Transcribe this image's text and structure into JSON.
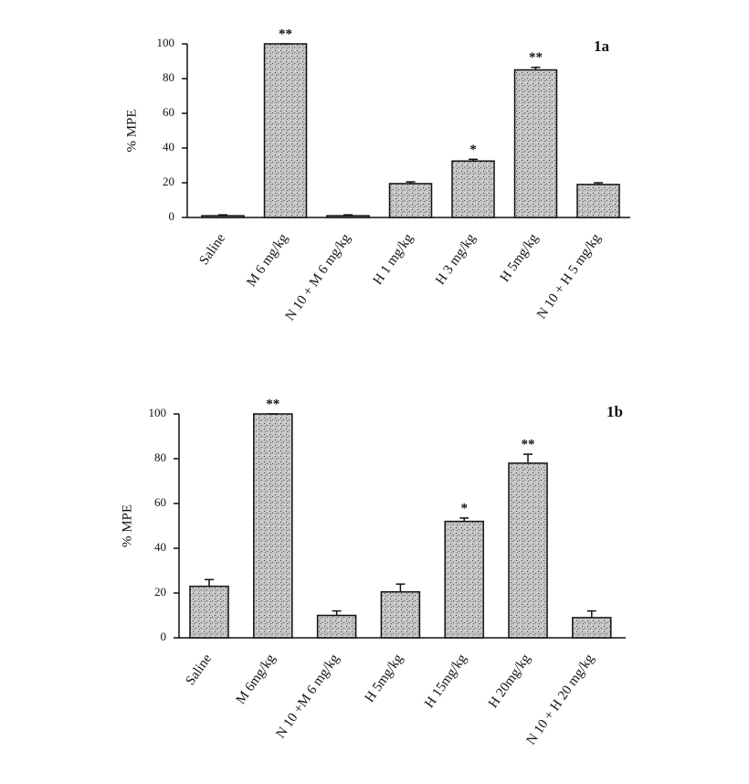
{
  "chart_data": [
    {
      "type": "bar",
      "panel_label": "1a",
      "y_label": "% MPE",
      "categories": [
        "Saline",
        "M 6 mg/kg",
        "N 10 + M 6 mg/kg",
        "H 1 mg/kg",
        "H 3 mg/kg",
        "H 5mg/kg",
        "N 10 + H 5 mg/kg"
      ],
      "values": [
        1,
        100,
        1,
        19.5,
        32.5,
        85,
        19
      ],
      "errors": [
        0.5,
        0,
        0.5,
        1,
        1,
        1.5,
        1
      ],
      "annotations": [
        null,
        "**",
        null,
        null,
        "*",
        "**",
        null
      ],
      "color": "#b8b8b8",
      "ylim": [
        0,
        100
      ],
      "yticks": [
        0,
        20,
        40,
        60,
        80,
        100
      ]
    },
    {
      "type": "bar",
      "panel_label": "1b",
      "y_label": "% MPE",
      "categories": [
        "Saline",
        "M 6mg/kg",
        "N 10 +M 6 mg/kg",
        "H 5mg/kg",
        "H 15mg/kg",
        "H 20mg/kg",
        "N 10 + H 20 mg/kg"
      ],
      "values": [
        23,
        100,
        10,
        20.5,
        52,
        78,
        9
      ],
      "errors": [
        3,
        0,
        2,
        3.5,
        1.5,
        4,
        3
      ],
      "annotations": [
        null,
        "**",
        null,
        null,
        "*",
        "**",
        null
      ],
      "color": "#b8b8b8",
      "ylim": [
        0,
        100
      ],
      "yticks": [
        0,
        20,
        40,
        60,
        80,
        100
      ]
    }
  ]
}
